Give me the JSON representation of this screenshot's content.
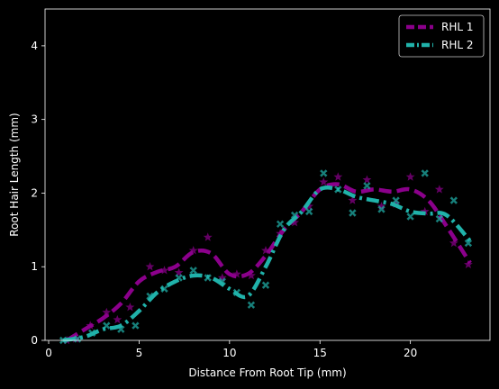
{
  "chart_data": {
    "type": "line",
    "title": "",
    "xlabel": "Distance From Root Tip (mm)",
    "ylabel": "Root Hair Length (mm)",
    "xlim": [
      -0.2,
      24.4
    ],
    "ylim": [
      0,
      4.5
    ],
    "xticks": [
      0,
      5,
      10,
      15,
      20
    ],
    "yticks": [
      0,
      1,
      2,
      3,
      4
    ],
    "grid": false,
    "legend_position": "top-right",
    "background": "#000000",
    "foreground": "#ffffff",
    "series": [
      {
        "name": "RHL 1",
        "color": "#8b008b",
        "line_style": "dashed",
        "marker": "star",
        "points": [
          {
            "x": 1.0,
            "y": 0.0
          },
          {
            "x": 1.5,
            "y": 0.02
          },
          {
            "x": 2.3,
            "y": 0.2
          },
          {
            "x": 3.2,
            "y": 0.38
          },
          {
            "x": 3.8,
            "y": 0.28
          },
          {
            "x": 4.5,
            "y": 0.45
          },
          {
            "x": 5.6,
            "y": 1.0
          },
          {
            "x": 6.4,
            "y": 0.95
          },
          {
            "x": 7.2,
            "y": 0.92
          },
          {
            "x": 8.0,
            "y": 1.22
          },
          {
            "x": 8.8,
            "y": 1.4
          },
          {
            "x": 9.6,
            "y": 0.85
          },
          {
            "x": 10.4,
            "y": 0.9
          },
          {
            "x": 11.2,
            "y": 0.88
          },
          {
            "x": 12.0,
            "y": 1.22
          },
          {
            "x": 12.8,
            "y": 1.45
          },
          {
            "x": 13.6,
            "y": 1.6
          },
          {
            "x": 14.4,
            "y": 1.82
          },
          {
            "x": 15.2,
            "y": 2.15
          },
          {
            "x": 16.0,
            "y": 2.22
          },
          {
            "x": 16.8,
            "y": 1.9
          },
          {
            "x": 17.6,
            "y": 2.18
          },
          {
            "x": 18.4,
            "y": 1.82
          },
          {
            "x": 19.2,
            "y": 1.85
          },
          {
            "x": 20.0,
            "y": 2.22
          },
          {
            "x": 20.8,
            "y": 1.75
          },
          {
            "x": 21.6,
            "y": 2.05
          },
          {
            "x": 22.4,
            "y": 1.32
          },
          {
            "x": 23.2,
            "y": 1.03
          }
        ],
        "curve": [
          {
            "x": 1.0,
            "y": 0.0
          },
          {
            "x": 2.0,
            "y": 0.15
          },
          {
            "x": 3.0,
            "y": 0.3
          },
          {
            "x": 4.0,
            "y": 0.5
          },
          {
            "x": 5.0,
            "y": 0.8
          },
          {
            "x": 6.0,
            "y": 0.93
          },
          {
            "x": 7.0,
            "y": 1.0
          },
          {
            "x": 8.0,
            "y": 1.2
          },
          {
            "x": 9.0,
            "y": 1.18
          },
          {
            "x": 10.0,
            "y": 0.9
          },
          {
            "x": 11.0,
            "y": 0.9
          },
          {
            "x": 12.0,
            "y": 1.15
          },
          {
            "x": 13.0,
            "y": 1.5
          },
          {
            "x": 14.0,
            "y": 1.75
          },
          {
            "x": 15.0,
            "y": 2.05
          },
          {
            "x": 16.0,
            "y": 2.12
          },
          {
            "x": 17.0,
            "y": 2.02
          },
          {
            "x": 18.0,
            "y": 2.05
          },
          {
            "x": 19.0,
            "y": 2.02
          },
          {
            "x": 20.0,
            "y": 2.05
          },
          {
            "x": 21.0,
            "y": 1.9
          },
          {
            "x": 22.0,
            "y": 1.55
          },
          {
            "x": 23.3,
            "y": 1.05
          }
        ]
      },
      {
        "name": "RHL 2",
        "color": "#20b2aa",
        "line_style": "dashdot",
        "marker": "x-filled",
        "points": [
          {
            "x": 0.8,
            "y": 0.0
          },
          {
            "x": 1.6,
            "y": 0.02
          },
          {
            "x": 2.4,
            "y": 0.1
          },
          {
            "x": 3.2,
            "y": 0.2
          },
          {
            "x": 4.0,
            "y": 0.15
          },
          {
            "x": 4.8,
            "y": 0.2
          },
          {
            "x": 5.6,
            "y": 0.6
          },
          {
            "x": 6.4,
            "y": 0.7
          },
          {
            "x": 7.2,
            "y": 0.85
          },
          {
            "x": 8.0,
            "y": 0.95
          },
          {
            "x": 8.8,
            "y": 0.85
          },
          {
            "x": 9.6,
            "y": 0.8
          },
          {
            "x": 10.4,
            "y": 0.65
          },
          {
            "x": 11.2,
            "y": 0.48
          },
          {
            "x": 12.0,
            "y": 0.75
          },
          {
            "x": 12.8,
            "y": 1.58
          },
          {
            "x": 13.6,
            "y": 1.7
          },
          {
            "x": 14.4,
            "y": 1.75
          },
          {
            "x": 15.2,
            "y": 2.27
          },
          {
            "x": 16.0,
            "y": 2.05
          },
          {
            "x": 16.8,
            "y": 1.73
          },
          {
            "x": 17.6,
            "y": 2.1
          },
          {
            "x": 18.4,
            "y": 1.78
          },
          {
            "x": 19.2,
            "y": 1.9
          },
          {
            "x": 20.0,
            "y": 1.68
          },
          {
            "x": 20.8,
            "y": 2.27
          },
          {
            "x": 21.6,
            "y": 1.65
          },
          {
            "x": 22.4,
            "y": 1.9
          },
          {
            "x": 23.2,
            "y": 1.32
          }
        ],
        "curve": [
          {
            "x": 0.8,
            "y": 0.0
          },
          {
            "x": 2.0,
            "y": 0.05
          },
          {
            "x": 3.0,
            "y": 0.15
          },
          {
            "x": 4.0,
            "y": 0.2
          },
          {
            "x": 5.0,
            "y": 0.4
          },
          {
            "x": 6.0,
            "y": 0.65
          },
          {
            "x": 7.0,
            "y": 0.8
          },
          {
            "x": 8.0,
            "y": 0.88
          },
          {
            "x": 9.0,
            "y": 0.85
          },
          {
            "x": 10.0,
            "y": 0.7
          },
          {
            "x": 11.0,
            "y": 0.6
          },
          {
            "x": 12.0,
            "y": 1.0
          },
          {
            "x": 13.0,
            "y": 1.5
          },
          {
            "x": 14.0,
            "y": 1.75
          },
          {
            "x": 15.0,
            "y": 2.05
          },
          {
            "x": 16.0,
            "y": 2.05
          },
          {
            "x": 17.0,
            "y": 1.95
          },
          {
            "x": 18.0,
            "y": 1.9
          },
          {
            "x": 19.0,
            "y": 1.85
          },
          {
            "x": 20.0,
            "y": 1.75
          },
          {
            "x": 21.0,
            "y": 1.72
          },
          {
            "x": 22.0,
            "y": 1.7
          },
          {
            "x": 23.3,
            "y": 1.35
          }
        ]
      }
    ]
  }
}
